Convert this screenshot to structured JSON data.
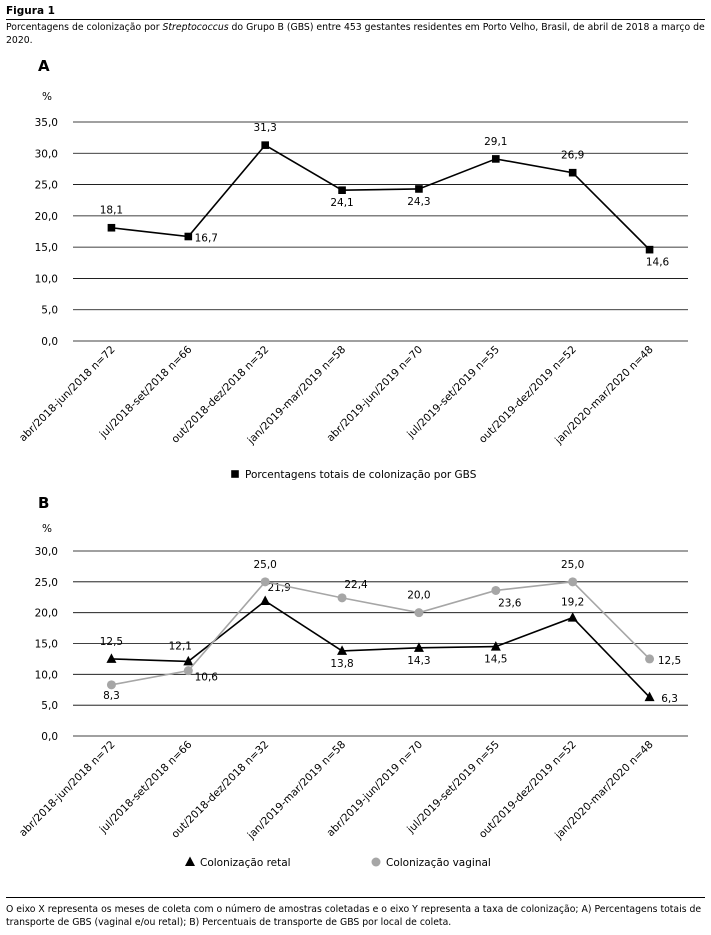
{
  "figure_label": "Figura 1",
  "caption": {
    "prefix": "Porcentagens de colonização por ",
    "italic": "Streptococcus",
    "suffix": " do Grupo B (GBS) entre 453 gestantes residentes em Porto Velho, Brasil, de abril de 2018 a março de 2020."
  },
  "footnote": "O eixo X representa os meses de coleta com o número de amostras coletadas e o eixo Y representa a taxa de colonização; A) Percentagens totais de transporte de GBS (vaginal e/ou retal); B) Percentuais de transporte de GBS por local de coleta.",
  "chart_data": [
    {
      "panel": "A",
      "type": "line",
      "ylabel": "%",
      "ylim": [
        0,
        35
      ],
      "yticks": [
        "0,0",
        "5,0",
        "10,0",
        "15,0",
        "20,0",
        "25,0",
        "30,0",
        "35,0"
      ],
      "categories": [
        "abr/2018-jun/2018 n=72",
        "jul/2018-set/2018 n=66",
        "out/2018-dez/2018 n=32",
        "jan/2019-mar/2019 n=58",
        "abr/2019-jun/2019 n=70",
        "jul/2019-set/2019 n=55",
        "out/2019-dez/2019 n=52",
        "jan/2020-mar/2020 n=48"
      ],
      "series": [
        {
          "name": "Porcentagens totais de colonização por GBS",
          "values": [
            18.1,
            16.7,
            31.3,
            24.1,
            24.3,
            29.1,
            26.9,
            14.6
          ],
          "labels": [
            "18,1",
            "16,7",
            "31,3",
            "24,1",
            "24,3",
            "29,1",
            "26,9",
            "14,6"
          ],
          "color": "#000000",
          "marker": "square"
        }
      ],
      "legend": "bottom",
      "grid": true
    },
    {
      "panel": "B",
      "type": "line",
      "ylabel": "%",
      "ylim": [
        0,
        30
      ],
      "yticks": [
        "0,0",
        "5,0",
        "10,0",
        "15,0",
        "20,0",
        "25,0",
        "30,0"
      ],
      "categories": [
        "abr/2018-jun/2018 n=72",
        "jul/2018-set/2018 n=66",
        "out/2018-dez/2018 n=32",
        "jan/2019-mar/2019 n=58",
        "abr/2019-jun/2019 n=70",
        "jul/2019-set/2019 n=55",
        "out/2019-dez/2019 n=52",
        "jan/2020-mar/2020 n=48"
      ],
      "series": [
        {
          "name": "Colonização retal",
          "values": [
            12.5,
            12.1,
            21.9,
            13.8,
            14.3,
            14.5,
            19.2,
            6.3
          ],
          "labels": [
            "12,5",
            "12,1",
            "21,9",
            "13,8",
            "14,3",
            "14,5",
            "19,2",
            "6,3"
          ],
          "color": "#000000",
          "marker": "triangle"
        },
        {
          "name": "Colonização vaginal",
          "values": [
            8.3,
            10.6,
            25.0,
            22.4,
            20.0,
            23.6,
            25.0,
            12.5
          ],
          "labels": [
            "8,3",
            "10,6",
            "25,0",
            "22,4",
            "20,0",
            "23,6",
            "25,0",
            "12,5"
          ],
          "color": "#a6a6a6",
          "marker": "circle"
        }
      ],
      "legend": "bottom",
      "grid": true
    }
  ]
}
